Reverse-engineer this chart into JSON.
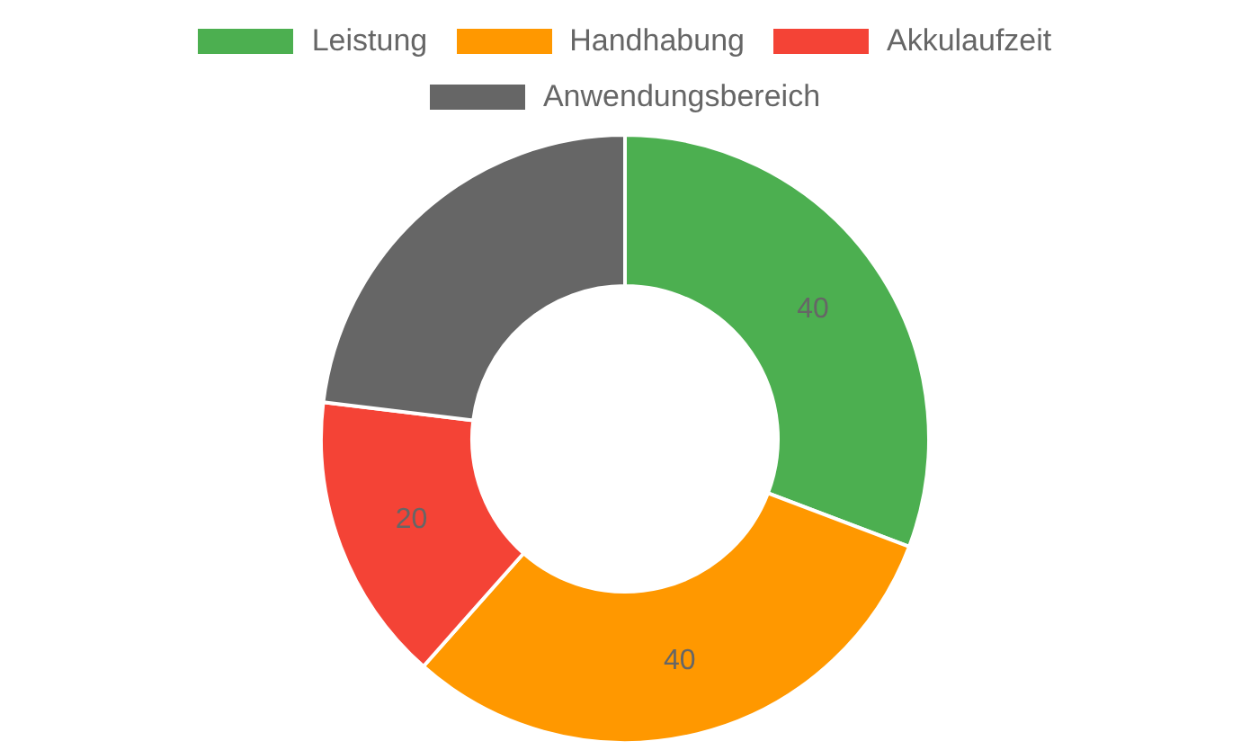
{
  "chart_data": {
    "type": "donut",
    "categories": [
      "Leistung",
      "Handhabung",
      "Akkulaufzeit",
      "Anwendungsbereich"
    ],
    "values": [
      40,
      40,
      20,
      30
    ],
    "colors": [
      "#4caf50",
      "#ff9800",
      "#f44336",
      "#666666"
    ],
    "value_labels": [
      "40",
      "40",
      "20",
      null
    ],
    "legend": "top"
  }
}
